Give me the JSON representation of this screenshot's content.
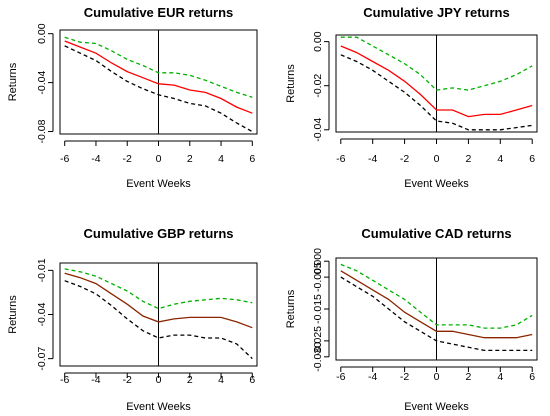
{
  "chart_data": [
    {
      "type": "line",
      "title": "Cumulative EUR returns",
      "xlabel": "Event Weeks",
      "ylabel": "Returns",
      "x": [
        -6,
        -5,
        -4,
        -3,
        -2,
        -1,
        0,
        1,
        2,
        3,
        4,
        5,
        6
      ],
      "xticks": [
        -6,
        -4,
        -2,
        0,
        2,
        4,
        6
      ],
      "xlim": [
        -6.3,
        6.3
      ],
      "yticks": [
        0.0,
        -0.04,
        -0.08
      ],
      "ytick_labels": [
        "0.00",
        "-0.04",
        "-0.08"
      ],
      "ylim": [
        -0.082,
        0.003
      ],
      "vline_x": 0,
      "series": [
        {
          "color": "#00b000",
          "dash": true,
          "values": [
            -0.003,
            -0.007,
            -0.008,
            -0.014,
            -0.021,
            -0.026,
            -0.032,
            -0.032,
            -0.034,
            -0.038,
            -0.043,
            -0.048,
            -0.052
          ]
        },
        {
          "color": "#ff0000",
          "dash": false,
          "values": [
            -0.006,
            -0.011,
            -0.016,
            -0.024,
            -0.031,
            -0.036,
            -0.041,
            -0.042,
            -0.046,
            -0.048,
            -0.053,
            -0.06,
            -0.065
          ]
        },
        {
          "color": "#000000",
          "dash": true,
          "values": [
            -0.01,
            -0.016,
            -0.022,
            -0.031,
            -0.039,
            -0.045,
            -0.05,
            -0.053,
            -0.057,
            -0.059,
            -0.065,
            -0.073,
            -0.08
          ]
        }
      ]
    },
    {
      "type": "line",
      "title": "Cumulative JPY returns",
      "xlabel": "Event Weeks",
      "ylabel": "Returns",
      "x": [
        -6,
        -5,
        -4,
        -3,
        -2,
        -1,
        0,
        1,
        2,
        3,
        4,
        5,
        6
      ],
      "xticks": [
        -6,
        -4,
        -2,
        0,
        2,
        4,
        6
      ],
      "xlim": [
        -6.3,
        6.3
      ],
      "yticks": [
        0.0,
        -0.02,
        -0.04
      ],
      "ytick_labels": [
        "0.00",
        "-0.02",
        "-0.04"
      ],
      "ylim": [
        -0.041,
        0.003
      ],
      "vline_x": 0,
      "series": [
        {
          "color": "#00b000",
          "dash": true,
          "values": [
            0.002,
            0.002,
            -0.002,
            -0.006,
            -0.01,
            -0.015,
            -0.022,
            -0.021,
            -0.022,
            -0.02,
            -0.018,
            -0.015,
            -0.011
          ]
        },
        {
          "color": "#ff0000",
          "dash": false,
          "values": [
            -0.002,
            -0.005,
            -0.009,
            -0.013,
            -0.018,
            -0.024,
            -0.031,
            -0.031,
            -0.034,
            -0.033,
            -0.033,
            -0.031,
            -0.029
          ]
        },
        {
          "color": "#000000",
          "dash": true,
          "values": [
            -0.006,
            -0.009,
            -0.013,
            -0.018,
            -0.023,
            -0.029,
            -0.036,
            -0.037,
            -0.04,
            -0.04,
            -0.04,
            -0.039,
            -0.038
          ]
        }
      ]
    },
    {
      "type": "line",
      "title": "Cumulative GBP returns",
      "xlabel": "Event Weeks",
      "ylabel": "Returns",
      "x": [
        -6,
        -5,
        -4,
        -3,
        -2,
        -1,
        0,
        1,
        2,
        3,
        4,
        5,
        6
      ],
      "xticks": [
        -6,
        -4,
        -2,
        0,
        2,
        4,
        6
      ],
      "xlim": [
        -6.3,
        6.3
      ],
      "yticks": [
        -0.01,
        -0.04,
        -0.07
      ],
      "ytick_labels": [
        "-0.01",
        "-0.04",
        "-0.07"
      ],
      "ylim": [
        -0.075,
        -0.005
      ],
      "vline_x": 0,
      "series": [
        {
          "color": "#00b000",
          "dash": true,
          "values": [
            -0.009,
            -0.011,
            -0.014,
            -0.019,
            -0.024,
            -0.031,
            -0.036,
            -0.033,
            -0.031,
            -0.03,
            -0.029,
            -0.03,
            -0.032
          ]
        },
        {
          "color": "#8b2500",
          "dash": false,
          "values": [
            -0.012,
            -0.015,
            -0.019,
            -0.026,
            -0.033,
            -0.041,
            -0.045,
            -0.043,
            -0.042,
            -0.042,
            -0.042,
            -0.045,
            -0.049
          ]
        },
        {
          "color": "#000000",
          "dash": true,
          "values": [
            -0.017,
            -0.021,
            -0.026,
            -0.034,
            -0.043,
            -0.051,
            -0.056,
            -0.054,
            -0.054,
            -0.056,
            -0.056,
            -0.06,
            -0.07
          ]
        }
      ]
    },
    {
      "type": "line",
      "title": "Cumulative CAD returns",
      "xlabel": "Event Weeks",
      "ylabel": "Returns",
      "x": [
        -6,
        -5,
        -4,
        -3,
        -2,
        -1,
        0,
        1,
        2,
        3,
        4,
        5,
        6
      ],
      "xticks": [
        -6,
        -4,
        -2,
        0,
        2,
        4,
        6
      ],
      "xlim": [
        -6.3,
        6.3
      ],
      "yticks": [
        0.0,
        -0.005,
        -0.015,
        -0.025,
        -0.03
      ],
      "ytick_labels": [
        "0.000",
        "-0.005",
        "-0.015",
        "-0.025",
        "-0.030"
      ],
      "ylim": [
        -0.031,
        0.001
      ],
      "vline_x": 0,
      "series": [
        {
          "color": "#00b000",
          "dash": true,
          "values": [
            -0.001,
            -0.003,
            -0.006,
            -0.009,
            -0.012,
            -0.016,
            -0.02,
            -0.02,
            -0.02,
            -0.021,
            -0.021,
            -0.02,
            -0.017
          ]
        },
        {
          "color": "#8b2500",
          "dash": false,
          "values": [
            -0.003,
            -0.006,
            -0.009,
            -0.012,
            -0.016,
            -0.019,
            -0.022,
            -0.022,
            -0.023,
            -0.024,
            -0.024,
            -0.024,
            -0.023
          ]
        },
        {
          "color": "#000000",
          "dash": true,
          "values": [
            -0.005,
            -0.008,
            -0.011,
            -0.015,
            -0.019,
            -0.022,
            -0.025,
            -0.026,
            -0.027,
            -0.028,
            -0.028,
            -0.028,
            -0.028
          ]
        }
      ]
    }
  ]
}
